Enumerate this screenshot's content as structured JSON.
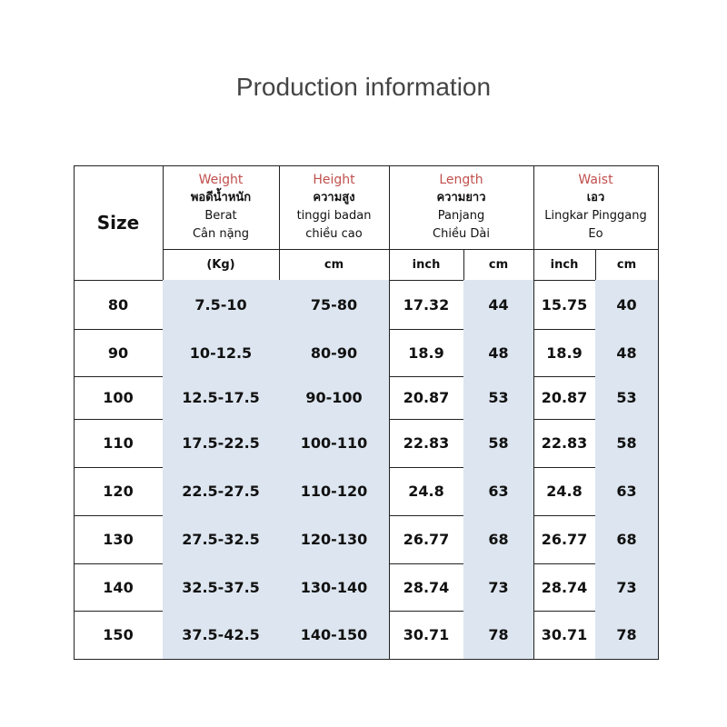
{
  "title": "Production information",
  "table": {
    "size_header": "Size",
    "headers": [
      {
        "name": "Weight",
        "lines": [
          "พอดีน้ำหนัก",
          "Berat",
          "Cân nặng"
        ]
      },
      {
        "name": "Height",
        "lines": [
          "ความสูง",
          "tinggi badan",
          "chiều cao"
        ]
      },
      {
        "name": "Length",
        "lines": [
          "ความยาว",
          "Panjang",
          "Chiều Dài"
        ]
      },
      {
        "name": "Waist",
        "lines": [
          "เอว",
          "Lingkar Pinggang",
          "Eo"
        ]
      }
    ],
    "units": [
      "(Kg)",
      "cm",
      "inch",
      "cm",
      "inch",
      "cm"
    ],
    "rows": [
      [
        80,
        "7.5-10",
        "75-80",
        17.32,
        44,
        15.75,
        40
      ],
      [
        90,
        "10-12.5",
        "80-90",
        18.9,
        48,
        18.9,
        48
      ],
      [
        100,
        "12.5-17.5",
        "90-100",
        20.87,
        53,
        20.87,
        53
      ],
      [
        110,
        "17.5-22.5",
        "100-110",
        22.83,
        58,
        22.83,
        58
      ],
      [
        120,
        "22.5-27.5",
        "110-120",
        24.8,
        63,
        24.8,
        63
      ],
      [
        130,
        "27.5-32.5",
        "120-130",
        26.77,
        68,
        26.77,
        68
      ],
      [
        140,
        "32.5-37.5",
        "130-140",
        28.74,
        73,
        28.74,
        73
      ],
      [
        150,
        "37.5-42.5",
        "140-150",
        30.71,
        78,
        30.71,
        78
      ]
    ]
  }
}
